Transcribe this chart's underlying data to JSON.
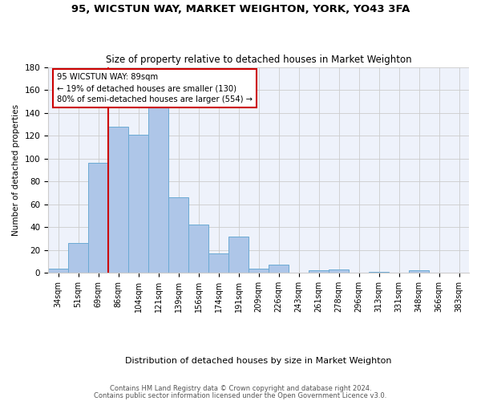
{
  "title": "95, WICSTUN WAY, MARKET WEIGHTON, YORK, YO43 3FA",
  "subtitle": "Size of property relative to detached houses in Market Weighton",
  "xlabel": "Distribution of detached houses by size in Market Weighton",
  "ylabel": "Number of detached properties",
  "bins": [
    "34sqm",
    "51sqm",
    "69sqm",
    "86sqm",
    "104sqm",
    "121sqm",
    "139sqm",
    "156sqm",
    "174sqm",
    "191sqm",
    "209sqm",
    "226sqm",
    "243sqm",
    "261sqm",
    "278sqm",
    "296sqm",
    "313sqm",
    "331sqm",
    "348sqm",
    "366sqm",
    "383sqm"
  ],
  "values": [
    4,
    26,
    96,
    128,
    121,
    152,
    66,
    42,
    17,
    32,
    4,
    7,
    0,
    2,
    3,
    0,
    1,
    0,
    2,
    0,
    0
  ],
  "bar_color": "#aec6e8",
  "bar_edge_color": "#6aaad4",
  "vline_color": "#cc0000",
  "annotation_text": "95 WICSTUN WAY: 89sqm\n← 19% of detached houses are smaller (130)\n80% of semi-detached houses are larger (554) →",
  "annotation_box_color": "#ffffff",
  "annotation_box_edge": "#cc0000",
  "footer1": "Contains HM Land Registry data © Crown copyright and database right 2024.",
  "footer2": "Contains public sector information licensed under the Open Government Licence v3.0.",
  "ylim": [
    0,
    180
  ],
  "yticks": [
    0,
    20,
    40,
    60,
    80,
    100,
    120,
    140,
    160,
    180
  ],
  "grid_color": "#cccccc",
  "bg_color": "#eef2fb"
}
